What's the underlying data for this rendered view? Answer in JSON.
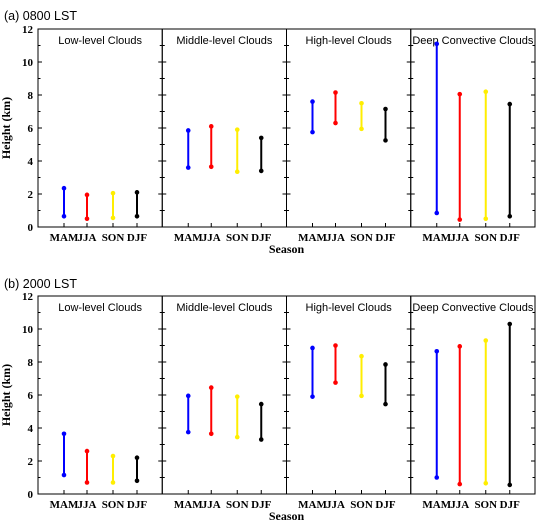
{
  "chart_data": [
    {
      "type": "range",
      "title": "(a) 0800 LST",
      "xlabel": "Season",
      "ylabel": "Height (km)",
      "ylim": [
        0,
        12
      ],
      "yticks": [
        "0",
        "2",
        "4",
        "6",
        "8",
        "10",
        "12"
      ],
      "categories": [
        "MAM",
        "JJA",
        "SON",
        "DJF"
      ],
      "series_colors": [
        "#0000ff",
        "#ff0000",
        "#ffee00",
        "#000000"
      ],
      "panels": [
        {
          "name": "Low-level Clouds",
          "ranges": [
            [
              0.65,
              2.35
            ],
            [
              0.5,
              1.95
            ],
            [
              0.55,
              2.05
            ],
            [
              0.65,
              2.1
            ]
          ]
        },
        {
          "name": "Middle-level Clouds",
          "ranges": [
            [
              3.6,
              5.85
            ],
            [
              3.65,
              6.1
            ],
            [
              3.35,
              5.9
            ],
            [
              3.4,
              5.4
            ]
          ]
        },
        {
          "name": "High-level Clouds",
          "ranges": [
            [
              5.75,
              7.6
            ],
            [
              6.3,
              8.15
            ],
            [
              5.95,
              7.5
            ],
            [
              5.25,
              7.15
            ]
          ]
        },
        {
          "name": "Deep Convective Clouds",
          "ranges": [
            [
              0.85,
              11.1
            ],
            [
              0.45,
              8.05
            ],
            [
              0.5,
              8.2
            ],
            [
              0.65,
              7.45
            ]
          ]
        }
      ]
    },
    {
      "type": "range",
      "title": "(b) 2000 LST",
      "xlabel": "Season",
      "ylabel": "Height (km)",
      "ylim": [
        0,
        12
      ],
      "yticks": [
        "0",
        "2",
        "4",
        "6",
        "8",
        "10",
        "12"
      ],
      "categories": [
        "MAM",
        "JJA",
        "SON",
        "DJF"
      ],
      "series_colors": [
        "#0000ff",
        "#ff0000",
        "#ffee00",
        "#000000"
      ],
      "panels": [
        {
          "name": "Low-level Clouds",
          "ranges": [
            [
              1.15,
              3.65
            ],
            [
              0.7,
              2.6
            ],
            [
              0.7,
              2.3
            ],
            [
              0.8,
              2.2
            ]
          ]
        },
        {
          "name": "Middle-level Clouds",
          "ranges": [
            [
              3.75,
              5.95
            ],
            [
              3.65,
              6.45
            ],
            [
              3.45,
              5.9
            ],
            [
              3.3,
              5.45
            ]
          ]
        },
        {
          "name": "High-level Clouds",
          "ranges": [
            [
              5.9,
              8.85
            ],
            [
              6.75,
              9.0
            ],
            [
              5.95,
              8.35
            ],
            [
              5.45,
              7.85
            ]
          ]
        },
        {
          "name": "Deep Convective Clouds",
          "ranges": [
            [
              1.0,
              8.65
            ],
            [
              0.6,
              8.95
            ],
            [
              0.65,
              9.3
            ],
            [
              0.55,
              10.3
            ]
          ]
        }
      ]
    }
  ]
}
